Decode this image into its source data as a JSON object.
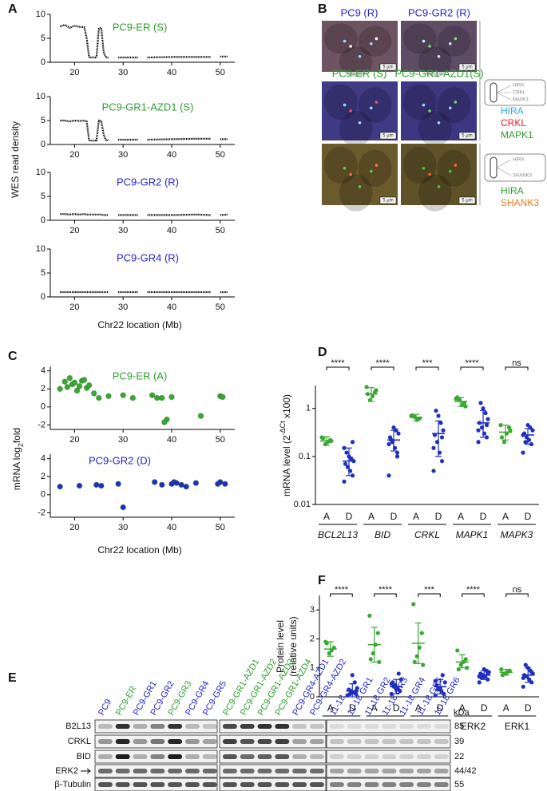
{
  "panel_labels": [
    "A",
    "B",
    "C",
    "D",
    "E",
    "F"
  ],
  "shared_axis_labels": {
    "A": {
      "y": "WES read density",
      "x": "Chr22 location (Mb)"
    },
    "C": {
      "y": {
        "text": "mRNA log",
        "sub": "2",
        "tail": "fold"
      },
      "x": "Chr22 location (Mb)"
    }
  },
  "chart_data": [
    {
      "type": "line",
      "title": "PC9-ER (S)",
      "title_color": "#2e9e2e",
      "color": "#000000",
      "x": [
        17,
        18,
        19,
        20,
        21,
        22,
        22.5,
        23,
        24,
        24.5,
        25,
        25.5,
        26,
        26.5,
        27,
        28,
        29,
        30,
        33,
        34,
        35,
        40,
        45,
        48,
        49,
        50,
        51.5
      ],
      "values": [
        7.5,
        7.8,
        7.2,
        7.6,
        7.4,
        7.3,
        5,
        1,
        1,
        1,
        7,
        7.2,
        2,
        1,
        1,
        null,
        1,
        1,
        1,
        null,
        1,
        1.1,
        1.1,
        1.1,
        null,
        1.2,
        1.2
      ],
      "xlim": [
        15,
        53
      ],
      "ylim": [
        0,
        10
      ],
      "xticks": [
        20,
        30,
        40,
        50
      ],
      "yticks": [
        0,
        5,
        10
      ]
    },
    {
      "type": "line",
      "title": "PC9-GR1-AZD1 (S)",
      "title_color": "#2e9e2e",
      "color": "#000000",
      "x": [
        17,
        18,
        19,
        20,
        21,
        22,
        22.5,
        23,
        24,
        24.5,
        25,
        25.5,
        26,
        26.5,
        27,
        28,
        29,
        30,
        33,
        34,
        35,
        40,
        45,
        48,
        49,
        50,
        51.5
      ],
      "values": [
        5,
        5,
        4.8,
        5,
        4.9,
        5,
        4.8,
        0.8,
        0.8,
        0.8,
        5,
        4.9,
        2,
        0.8,
        1,
        null,
        1,
        1,
        1,
        null,
        1,
        1.1,
        1.2,
        1.2,
        null,
        1.1,
        1.1
      ],
      "xlim": [
        15,
        53
      ],
      "ylim": [
        0,
        10
      ],
      "xticks": [
        20,
        30,
        40,
        50
      ],
      "yticks": [
        0,
        5,
        10
      ]
    },
    {
      "type": "line",
      "title": "PC9-GR2 (R)",
      "title_color": "#2323c8",
      "color": "#000000",
      "x": [
        17,
        18,
        19,
        20,
        21,
        22,
        22.5,
        23,
        24,
        24.5,
        25,
        25.5,
        26,
        26.5,
        27,
        28,
        29,
        30,
        33,
        34,
        35,
        40,
        45,
        48,
        49,
        50,
        51.5
      ],
      "values": [
        1.3,
        1.3,
        1.2,
        1.3,
        1.2,
        1.3,
        1.2,
        1.2,
        1.2,
        1.2,
        1.2,
        1.2,
        1.1,
        1.1,
        1.1,
        null,
        1.1,
        1.1,
        1.1,
        null,
        1.1,
        1.1,
        1.2,
        1.1,
        null,
        1.1,
        1.2
      ],
      "xlim": [
        15,
        53
      ],
      "ylim": [
        0,
        10
      ],
      "xticks": [
        20,
        30,
        40,
        50
      ],
      "yticks": [
        0,
        5,
        10
      ]
    },
    {
      "type": "line",
      "title": "PC9-GR4 (R)",
      "title_color": "#2323c8",
      "color": "#000000",
      "x": [
        17,
        18,
        19,
        20,
        21,
        22,
        22.5,
        23,
        24,
        24.5,
        25,
        25.5,
        26,
        26.5,
        27,
        28,
        29,
        30,
        33,
        34,
        35,
        40,
        45,
        48,
        49,
        50,
        51.5
      ],
      "values": [
        1,
        1,
        1,
        1,
        1,
        1,
        1,
        1,
        1,
        1,
        1,
        1,
        1,
        1,
        1,
        null,
        1,
        1,
        1,
        null,
        1,
        1,
        1,
        1,
        null,
        1,
        1
      ],
      "xlim": [
        15,
        53
      ],
      "ylim": [
        0,
        10
      ],
      "xticks": [
        20,
        30,
        40,
        50
      ],
      "yticks": [
        0,
        5,
        10
      ]
    },
    {
      "type": "scatter",
      "title": "PC9-ER (A)",
      "title_color": "#2e9e2e",
      "color": "#3aa832",
      "x": [
        17,
        18,
        18.5,
        19,
        19.5,
        20,
        20.5,
        21,
        21.5,
        22,
        22.5,
        23,
        24,
        25,
        27,
        30,
        32,
        36,
        37,
        38,
        39,
        38.5,
        40,
        46,
        50,
        50.5
      ],
      "values": [
        2,
        2.8,
        2.2,
        3.2,
        2.5,
        2.7,
        1.8,
        2.3,
        2.9,
        3,
        2.1,
        2.4,
        1.5,
        1,
        1.2,
        1.3,
        1,
        1.3,
        1,
        1,
        -1.4,
        -1.7,
        1.1,
        -1,
        1.2,
        1.1
      ],
      "xlim": [
        15,
        53
      ],
      "ylim": [
        -2.5,
        4.5
      ],
      "xticks": [
        20,
        30,
        40,
        50
      ],
      "yticks": [
        -2,
        0,
        2,
        4
      ]
    },
    {
      "type": "scatter",
      "title": "PC9-GR2 (D)",
      "title_color": "#2323c8",
      "color": "#1f2fbf",
      "x": [
        17,
        21,
        24.5,
        25.5,
        29,
        30,
        36.5,
        38,
        40,
        40.5,
        41,
        42,
        43,
        45,
        49.5,
        50,
        51
      ],
      "values": [
        0.9,
        1,
        1.1,
        1,
        1.2,
        -1.4,
        1.4,
        1.1,
        1.2,
        1.4,
        1.3,
        1.1,
        0.9,
        1.3,
        1.2,
        1.4,
        1.2
      ],
      "xlim": [
        15,
        53
      ],
      "ylim": [
        -2.5,
        4.5
      ],
      "xticks": [
        20,
        30,
        40,
        50
      ],
      "yticks": [
        -2,
        0,
        2,
        4
      ]
    },
    {
      "type": "dot_plot",
      "log_scale": true,
      "ylabel": {
        "text": "mRNA level (2",
        "sup": "-ΔCt",
        "tail": " x100)"
      },
      "categories": [
        "A",
        "D",
        "A",
        "D",
        "A",
        "D",
        "A",
        "D",
        "A",
        "D"
      ],
      "groups": [
        "BCL2L13",
        "BID",
        "CRKL",
        "MAPK1",
        "MAPK3"
      ],
      "group_italic": true,
      "significance": [
        "****",
        "****",
        "***",
        "****",
        "ns"
      ],
      "colors": [
        "#3aa832",
        "#1f2fbf",
        "#3aa832",
        "#1f2fbf",
        "#3aa832",
        "#1f2fbf",
        "#3aa832",
        "#1f2fbf",
        "#3aa832",
        "#1f2fbf"
      ],
      "values": [
        0.21,
        0.08,
        2,
        0.22,
        0.65,
        0.3,
        1.4,
        0.5,
        0.32,
        0.28
      ],
      "error_low": [
        0.17,
        0.04,
        1.4,
        0.13,
        0.55,
        0.1,
        1.1,
        0.25,
        0.22,
        0.18
      ],
      "error_high": [
        0.26,
        0.15,
        2.7,
        0.35,
        0.75,
        0.55,
        1.7,
        0.9,
        0.45,
        0.38
      ],
      "points": [
        [
          0.25,
          0.22,
          0.2,
          0.18,
          0.24,
          0.21
        ],
        [
          0.03,
          0.04,
          0.05,
          0.06,
          0.07,
          0.08,
          0.09,
          0.1,
          0.12,
          0.15,
          0.2,
          0.05,
          0.06
        ],
        [
          2.8,
          2.2,
          1.8,
          1.5,
          2,
          2.4
        ],
        [
          0.04,
          0.1,
          0.15,
          0.2,
          0.25,
          0.3,
          0.35,
          0.4,
          0.22,
          0.18,
          0.12
        ],
        [
          0.7,
          0.62,
          0.58,
          0.66,
          0.72
        ],
        [
          0.05,
          0.08,
          0.12,
          0.2,
          0.28,
          0.35,
          0.5,
          0.7,
          0.9,
          0.15,
          0.25
        ],
        [
          1.6,
          1.3,
          1.2,
          1.5,
          1.7,
          1.1
        ],
        [
          0.2,
          0.25,
          0.3,
          0.4,
          0.5,
          0.6,
          0.8,
          1,
          1.3,
          0.35,
          0.45
        ],
        [
          0.45,
          0.4,
          0.3,
          0.2,
          0.25,
          0.35
        ],
        [
          0.12,
          0.18,
          0.22,
          0.25,
          0.3,
          0.35,
          0.4,
          0.45,
          0.2,
          0.28
        ]
      ],
      "ylim": [
        0.01,
        3
      ],
      "yticks": [
        0.01,
        0.1,
        1
      ]
    },
    {
      "type": "dot_plot",
      "log_scale": false,
      "ylabel": [
        "Protein level",
        "(relative units)"
      ],
      "categories": [
        "A",
        "D",
        "A",
        "D",
        "A",
        "D",
        "A",
        "D",
        "A",
        "D"
      ],
      "groups": [
        "B2L13",
        "BID",
        "CRKL",
        "ERK2",
        "ERK1"
      ],
      "group_italic": false,
      "significance": [
        "****",
        "****",
        "***",
        "****",
        "ns"
      ],
      "colors": [
        "#3aa832",
        "#1f2fbf",
        "#3aa832",
        "#1f2fbf",
        "#3aa832",
        "#1f2fbf",
        "#3aa832",
        "#1f2fbf",
        "#3aa832",
        "#1f2fbf"
      ],
      "values": [
        1.65,
        0.2,
        1.8,
        0.35,
        1.85,
        0.35,
        1.2,
        0.75,
        0.85,
        0.75
      ],
      "error_low": [
        1.4,
        0,
        1.2,
        0.1,
        1.15,
        0.1,
        1,
        0.6,
        0.75,
        0.5
      ],
      "error_high": [
        1.9,
        0.45,
        2.4,
        0.6,
        2.55,
        0.6,
        1.45,
        0.9,
        0.95,
        1
      ],
      "points": [
        [
          1.9,
          1.7,
          1.6,
          1.5,
          1.85
        ],
        [
          0.05,
          0.1,
          0.15,
          0.2,
          0.25,
          0.3,
          0.5,
          0.75,
          0.1,
          0.05,
          0.2,
          0.15
        ],
        [
          2.8,
          2.2,
          1.8,
          1.5,
          1.3,
          1.2
        ],
        [
          0.1,
          0.2,
          0.3,
          0.4,
          0.5,
          0.6,
          0.8,
          0.25,
          0.35,
          0.45
        ],
        [
          3.2,
          2.2,
          1.7,
          1.4,
          1.2,
          1.1
        ],
        [
          0.05,
          0.1,
          0.2,
          0.3,
          0.4,
          0.5,
          0.75,
          0.3,
          0.25,
          0.55
        ],
        [
          1.6,
          1.3,
          1.2,
          1.1,
          0.95,
          1
        ],
        [
          0.5,
          0.6,
          0.7,
          0.75,
          0.8,
          0.85,
          0.9,
          0.95,
          0.65,
          0.7,
          0.8
        ],
        [
          0.95,
          0.9,
          0.85,
          0.8,
          0.75
        ],
        [
          0.35,
          0.5,
          0.6,
          0.7,
          0.75,
          0.8,
          0.9,
          1,
          1.1,
          0.65,
          0.85
        ]
      ],
      "ylim": [
        0,
        3.5
      ],
      "yticks": [
        0,
        1,
        2,
        3
      ]
    }
  ],
  "fish": {
    "titles": [
      {
        "text": "PC9 (R)",
        "color": "#2323c8"
      },
      {
        "text": "PC9-GR2 (R)",
        "color": "#2323c8"
      },
      {
        "text": "PC9-ER (S)",
        "color": "#2e9e2e"
      },
      {
        "text": "PC9-GR1-AZD1(S)",
        "color": "#2e9e2e"
      }
    ],
    "scale_bars": [
      "5 µm",
      "5 µm",
      "5 µm",
      "5 µm",
      "5 µm",
      "5 µm"
    ],
    "probe_sets": [
      {
        "icon_labels": [
          "HIRA",
          "CRKL",
          "MAPK1"
        ],
        "names": [
          {
            "text": "HIRA",
            "color": "#29abe2"
          },
          {
            "text": "CRKL",
            "color": "#e8202a"
          },
          {
            "text": "MAPK1",
            "color": "#2e9e2e"
          }
        ]
      },
      {
        "icon_labels": [
          "HIRA",
          "SHANK3"
        ],
        "names": [
          {
            "text": "HIRA",
            "color": "#2e9e2e"
          },
          {
            "text": "SHANK3",
            "color": "#f07d1a"
          }
        ]
      }
    ]
  },
  "blot": {
    "lanes": [
      {
        "text": "PC9",
        "color": "#2323c8"
      },
      {
        "text": "PC9-ER",
        "color": "#2e9e2e"
      },
      {
        "text": "PC9-GR1",
        "color": "#2323c8"
      },
      {
        "text": "PC9-GR2",
        "color": "#2323c8"
      },
      {
        "text": "PC9-GR3",
        "color": "#2e9e2e"
      },
      {
        "text": "PC9-GR4",
        "color": "#2323c8"
      },
      {
        "text": "PC9-GR5",
        "color": "#2323c8"
      },
      {
        "text": "PC9-GR1-AZD1",
        "color": "#2e9e2e"
      },
      {
        "text": "PC9-GR1-AZD2",
        "color": "#2e9e2e"
      },
      {
        "text": "PC9-GR1-AZD3",
        "color": "#2e9e2e"
      },
      {
        "text": "PC9-GR1-AZD4",
        "color": "#2e9e2e"
      },
      {
        "text": "PC9-GR4-AZD1",
        "color": "#2323c8"
      },
      {
        "text": "PC9-GR4-AZD2",
        "color": "#2323c8"
      },
      {
        "text": "11-18",
        "color": "#2323c8"
      },
      {
        "text": "11-18 GR1",
        "color": "#2323c8"
      },
      {
        "text": "11-18 GR2",
        "color": "#2323c8"
      },
      {
        "text": "11-18 GR3",
        "color": "#2323c8"
      },
      {
        "text": "11-18 GR4",
        "color": "#2323c8"
      },
      {
        "text": "11-18 GR5",
        "color": "#2323c8"
      },
      {
        "text": "11-18 GR6",
        "color": "#2323c8"
      }
    ],
    "rows": [
      "B2L13",
      "CRKL",
      "BID",
      "ERK2",
      "β-Tubulin"
    ],
    "kda_label": "kDa",
    "sizes": [
      "85",
      "39",
      "22",
      "44/42",
      "55"
    ]
  }
}
